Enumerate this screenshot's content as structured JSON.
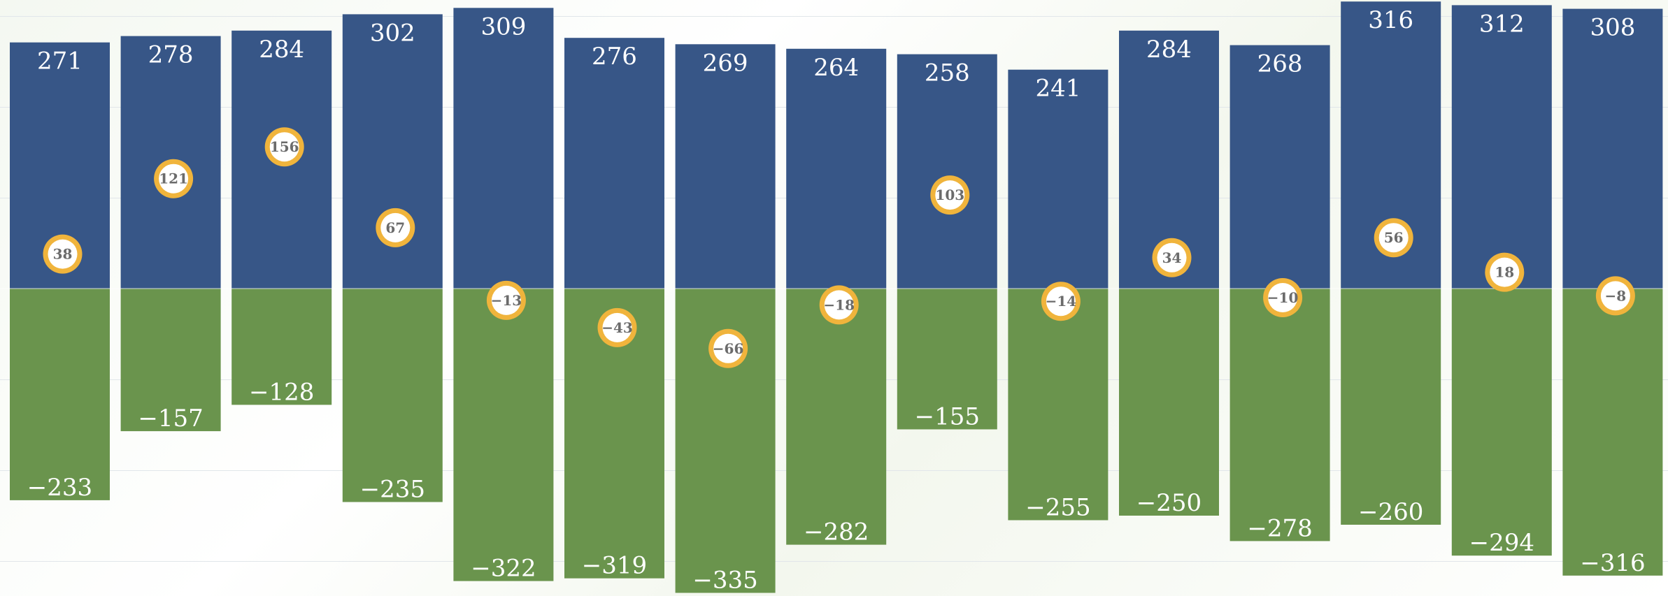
{
  "chart_data": {
    "type": "bar",
    "stacked": true,
    "categories": [
      "",
      "",
      "",
      "",
      "",
      "",
      "",
      "",
      "",
      "",
      "",
      "",
      "",
      "",
      ""
    ],
    "series": [
      {
        "color": "#375687",
        "values": [
          271,
          278,
          284,
          302,
          309,
          276,
          269,
          264,
          258,
          241,
          284,
          268,
          316,
          312,
          308
        ]
      },
      {
        "color": "#6a944d",
        "values": [
          -233,
          -157,
          -128,
          -235,
          -322,
          -319,
          -335,
          -282,
          -155,
          -255,
          -250,
          -278,
          -260,
          -294,
          -316
        ]
      }
    ],
    "net": {
      "values": [
        38,
        121,
        156,
        67,
        -13,
        -43,
        -66,
        -18,
        103,
        -14,
        34,
        -10,
        56,
        18,
        -8
      ],
      "marker_color": "#f0b43c"
    },
    "value_labels": {
      "positive": [
        "271",
        "278",
        "284",
        "302",
        "309",
        "276",
        "269",
        "264",
        "258",
        "241",
        "284",
        "268",
        "316",
        "312",
        "308"
      ],
      "negative": [
        "−233",
        "−157",
        "−128",
        "−235",
        "−322",
        "−319",
        "−335",
        "−282",
        "−155",
        "−255",
        "−250",
        "−278",
        "−260",
        "−294",
        "−316"
      ],
      "net": [
        "38",
        "121",
        "156",
        "67",
        "−13",
        "−43",
        "−66",
        "−18",
        "103",
        "−14",
        "34",
        "−10",
        "56",
        "18",
        "−8"
      ]
    },
    "ylim": [
      -335,
      316
    ],
    "grid": true,
    "legend": "none",
    "title": "",
    "xlabel": "",
    "ylabel": ""
  }
}
